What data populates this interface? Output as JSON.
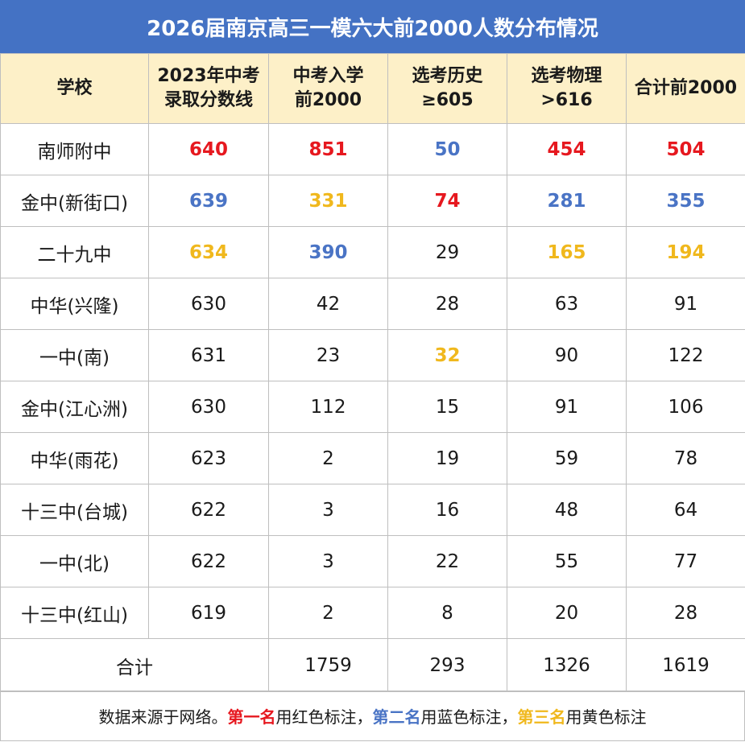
{
  "title": "2026届南京高三一模六大前2000人数分布情况",
  "colors": {
    "red": "#e6181f",
    "blue": "#4a74c5",
    "yellow": "#f0b81d",
    "header_bg": "#fdf0c8",
    "title_bg": "#4472c4"
  },
  "headers": [
    [
      "学校"
    ],
    [
      "2023年中考",
      "录取分数线"
    ],
    [
      "中考入学",
      "前2000"
    ],
    [
      "选考历史",
      "≥605"
    ],
    [
      "选考物理",
      ">616"
    ],
    [
      "合计前2000"
    ]
  ],
  "rows": [
    {
      "school": "南师附中",
      "cells": [
        {
          "v": "640",
          "c": "red"
        },
        {
          "v": "851",
          "c": "red"
        },
        {
          "v": "50",
          "c": "blue"
        },
        {
          "v": "454",
          "c": "red"
        },
        {
          "v": "504",
          "c": "red"
        }
      ]
    },
    {
      "school": "金中(新街口)",
      "cells": [
        {
          "v": "639",
          "c": "blue"
        },
        {
          "v": "331",
          "c": "yellow"
        },
        {
          "v": "74",
          "c": "red"
        },
        {
          "v": "281",
          "c": "blue"
        },
        {
          "v": "355",
          "c": "blue"
        }
      ]
    },
    {
      "school": "二十九中",
      "cells": [
        {
          "v": "634",
          "c": "yellow"
        },
        {
          "v": "390",
          "c": "blue"
        },
        {
          "v": "29",
          "c": ""
        },
        {
          "v": "165",
          "c": "yellow"
        },
        {
          "v": "194",
          "c": "yellow"
        }
      ]
    },
    {
      "school": "中华(兴隆)",
      "cells": [
        {
          "v": "630",
          "c": ""
        },
        {
          "v": "42",
          "c": ""
        },
        {
          "v": "28",
          "c": ""
        },
        {
          "v": "63",
          "c": ""
        },
        {
          "v": "91",
          "c": ""
        }
      ]
    },
    {
      "school": "一中(南)",
      "cells": [
        {
          "v": "631",
          "c": ""
        },
        {
          "v": "23",
          "c": ""
        },
        {
          "v": "32",
          "c": "yellow"
        },
        {
          "v": "90",
          "c": ""
        },
        {
          "v": "122",
          "c": ""
        }
      ]
    },
    {
      "school": "金中(江心洲)",
      "cells": [
        {
          "v": "630",
          "c": ""
        },
        {
          "v": "112",
          "c": ""
        },
        {
          "v": "15",
          "c": ""
        },
        {
          "v": "91",
          "c": ""
        },
        {
          "v": "106",
          "c": ""
        }
      ]
    },
    {
      "school": "中华(雨花)",
      "cells": [
        {
          "v": "623",
          "c": ""
        },
        {
          "v": "2",
          "c": ""
        },
        {
          "v": "19",
          "c": ""
        },
        {
          "v": "59",
          "c": ""
        },
        {
          "v": "78",
          "c": ""
        }
      ]
    },
    {
      "school": "十三中(台城)",
      "cells": [
        {
          "v": "622",
          "c": ""
        },
        {
          "v": "3",
          "c": ""
        },
        {
          "v": "16",
          "c": ""
        },
        {
          "v": "48",
          "c": ""
        },
        {
          "v": "64",
          "c": ""
        }
      ]
    },
    {
      "school": "一中(北)",
      "cells": [
        {
          "v": "622",
          "c": ""
        },
        {
          "v": "3",
          "c": ""
        },
        {
          "v": "22",
          "c": ""
        },
        {
          "v": "55",
          "c": ""
        },
        {
          "v": "77",
          "c": ""
        }
      ]
    },
    {
      "school": "十三中(红山)",
      "cells": [
        {
          "v": "619",
          "c": ""
        },
        {
          "v": "2",
          "c": ""
        },
        {
          "v": "8",
          "c": ""
        },
        {
          "v": "20",
          "c": ""
        },
        {
          "v": "28",
          "c": ""
        }
      ]
    }
  ],
  "total": {
    "label": "合计",
    "values": [
      "1759",
      "293",
      "1326",
      "1619"
    ]
  },
  "footer": {
    "source": "数据来源于网络。",
    "first": "第一名",
    "first_note": "用红色标注，",
    "second": "第二名",
    "second_note": "用蓝色标注，",
    "third": "第三名",
    "third_note": "用黄色标注"
  }
}
